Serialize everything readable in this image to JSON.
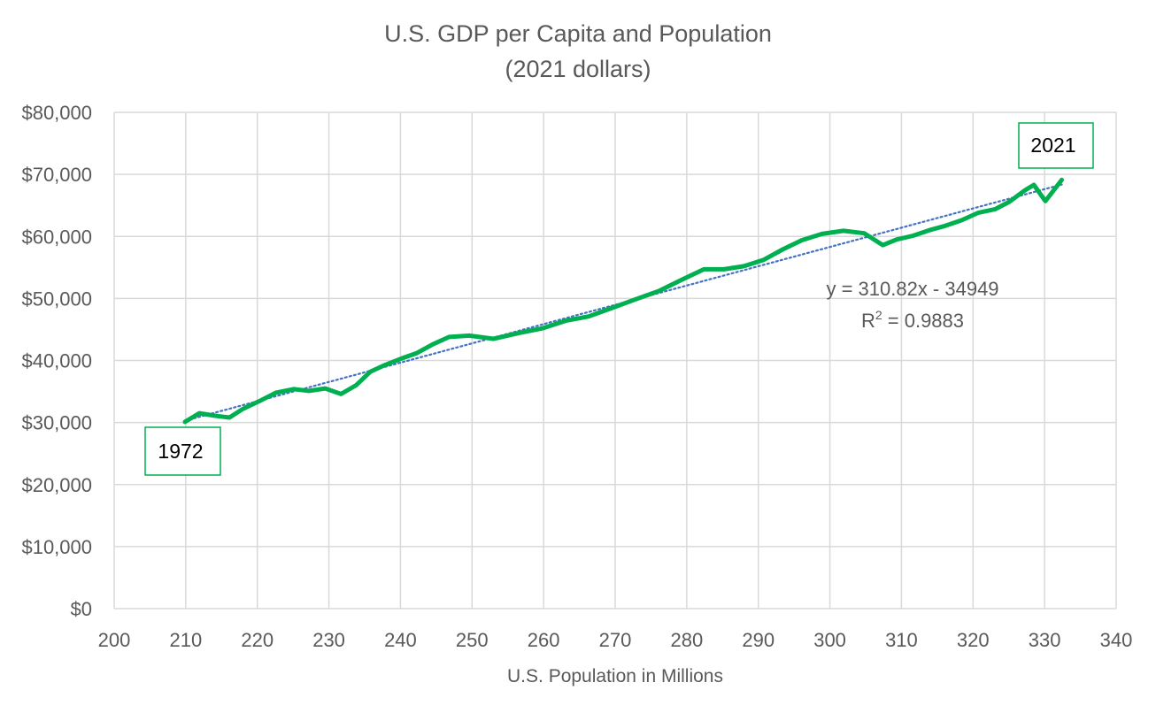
{
  "chart_data": {
    "type": "line",
    "title": "U.S. GDP per Capita and Population",
    "subtitle": "(2021 dollars)",
    "xlabel": "U.S. Population in  Millions",
    "ylabel": "",
    "xlim": [
      200,
      340
    ],
    "ylim": [
      0,
      80000
    ],
    "x_ticks": [
      200,
      210,
      220,
      230,
      240,
      250,
      260,
      270,
      280,
      290,
      300,
      310,
      320,
      330,
      340
    ],
    "x_tick_labels": [
      "200",
      "210",
      "220",
      "230",
      "240",
      "250",
      "260",
      "270",
      "280",
      "290",
      "300",
      "310",
      "320",
      "330",
      "340"
    ],
    "y_ticks": [
      0,
      10000,
      20000,
      30000,
      40000,
      50000,
      60000,
      70000,
      80000
    ],
    "y_tick_labels": [
      "$0",
      "$10,000",
      "$20,000",
      "$30,000",
      "$40,000",
      "$50,000",
      "$60,000",
      "$70,000",
      "$80,000"
    ],
    "grid": true,
    "legend": "none",
    "series": [
      {
        "color": "#00b050",
        "x": [
          209.9,
          211.9,
          214.0,
          216.1,
          218.0,
          220.2,
          222.6,
          225.1,
          227.2,
          229.5,
          231.7,
          233.8,
          235.8,
          237.9,
          240.1,
          242.3,
          244.5,
          246.8,
          249.6,
          253.0,
          256.5,
          259.9,
          263.1,
          266.3,
          269.4,
          272.7,
          276.1,
          279.3,
          282.4,
          285.2,
          288.0,
          290.7,
          293.4,
          296.1,
          298.9,
          301.9,
          304.8,
          307.4,
          309.3,
          311.6,
          313.9,
          316.1,
          318.4,
          320.7,
          323.1,
          325.1,
          327.2,
          328.5,
          330.1,
          332.4
        ],
        "y": [
          30100,
          31500,
          31100,
          30800,
          32200,
          33400,
          34800,
          35400,
          35100,
          35500,
          34600,
          36000,
          38200,
          39300,
          40300,
          41200,
          42600,
          43800,
          44000,
          43500,
          44400,
          45200,
          46400,
          47100,
          48400,
          49800,
          51200,
          53000,
          54700,
          54700,
          55200,
          56200,
          57900,
          59400,
          60400,
          60900,
          60500,
          58600,
          59500,
          60100,
          61000,
          61700,
          62600,
          63800,
          64400,
          65600,
          67400,
          68300,
          65700,
          69100
        ]
      }
    ],
    "trendline": {
      "style": "dotted",
      "color": "#4472c4",
      "slope": 310.82,
      "intercept": -34949,
      "x_range": [
        209.9,
        332.4
      ],
      "equation": "y = 310.82x - 34949",
      "r2_prefix": "R",
      "r2_sup": "2",
      "r2_suffix": " = 0.9883"
    },
    "annotations": [
      {
        "text": "1972",
        "x": 209.9,
        "y": 30100
      },
      {
        "text": "2021",
        "x": 332.4,
        "y": 69100
      }
    ]
  }
}
